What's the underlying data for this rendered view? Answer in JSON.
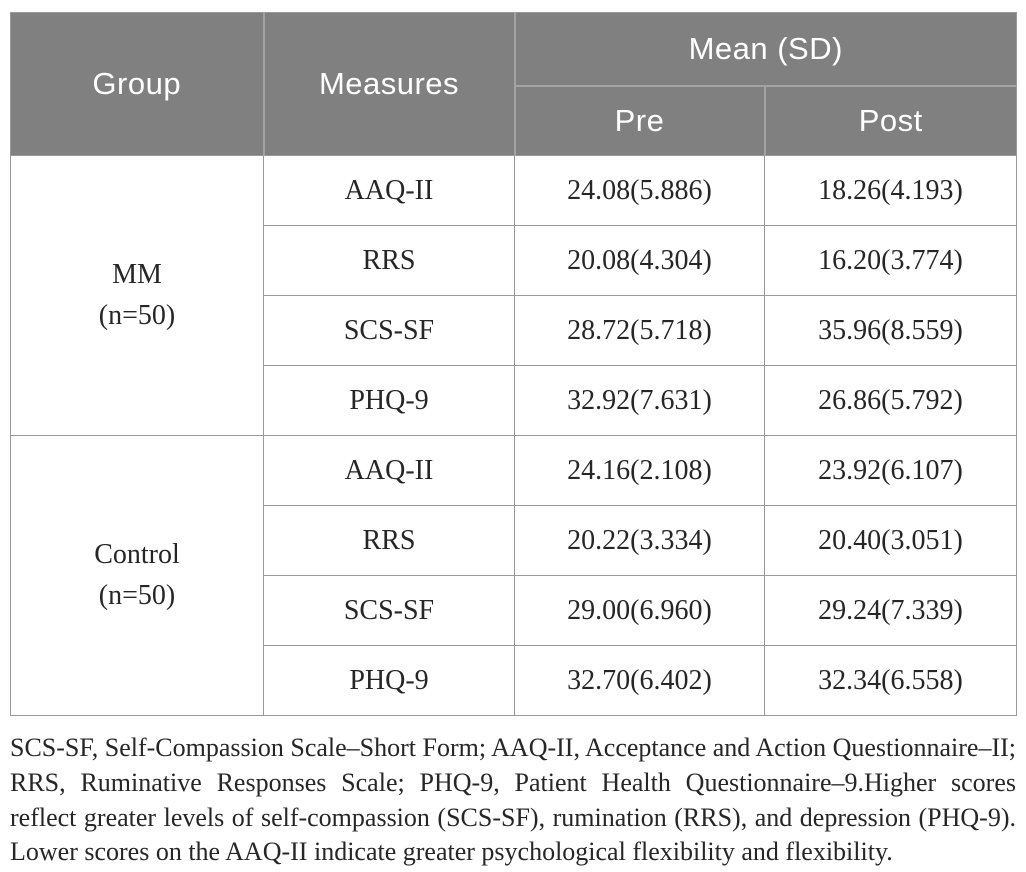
{
  "table": {
    "header": {
      "group": "Group",
      "measures": "Measures",
      "mean_sd": "Mean (SD)",
      "pre": "Pre",
      "post": "Post"
    },
    "groups": [
      {
        "name": "MM",
        "n": "(n=50)",
        "rows": [
          {
            "measure": "AAQ-II",
            "pre": "24.08(5.886)",
            "post": "18.26(4.193)"
          },
          {
            "measure": "RRS",
            "pre": "20.08(4.304)",
            "post": "16.20(3.774)"
          },
          {
            "measure": "SCS-SF",
            "pre": "28.72(5.718)",
            "post": "35.96(8.559)"
          },
          {
            "measure": "PHQ-9",
            "pre": "32.92(7.631)",
            "post": "26.86(5.792)"
          }
        ]
      },
      {
        "name": "Control",
        "n": "(n=50)",
        "rows": [
          {
            "measure": "AAQ-II",
            "pre": "24.16(2.108)",
            "post": "23.92(6.107)"
          },
          {
            "measure": "RRS",
            "pre": "20.22(3.334)",
            "post": "20.40(3.051)"
          },
          {
            "measure": "SCS-SF",
            "pre": "29.00(6.960)",
            "post": "29.24(7.339)"
          },
          {
            "measure": "PHQ-9",
            "pre": "32.70(6.402)",
            "post": "32.34(6.558)"
          }
        ]
      }
    ]
  },
  "footnote": "SCS-SF, Self-Compassion Scale–Short Form; AAQ-II, Acceptance and Action Questionnaire–II; RRS, Ruminative Responses Scale; PHQ-9, Patient Health Questionnaire–9.Higher scores reflect greater levels of self-compassion (SCS-SF), rumination (RRS), and depression (PHQ-9). Lower scores on the AAQ-II indicate greater psychological flexibility and flexibility.",
  "colors": {
    "header_background": "#808080",
    "header_text": "#ffffff",
    "header_divider": "#a3a3a3",
    "cell_border": "#999999",
    "body_text": "#262626",
    "page_background": "#ffffff"
  }
}
